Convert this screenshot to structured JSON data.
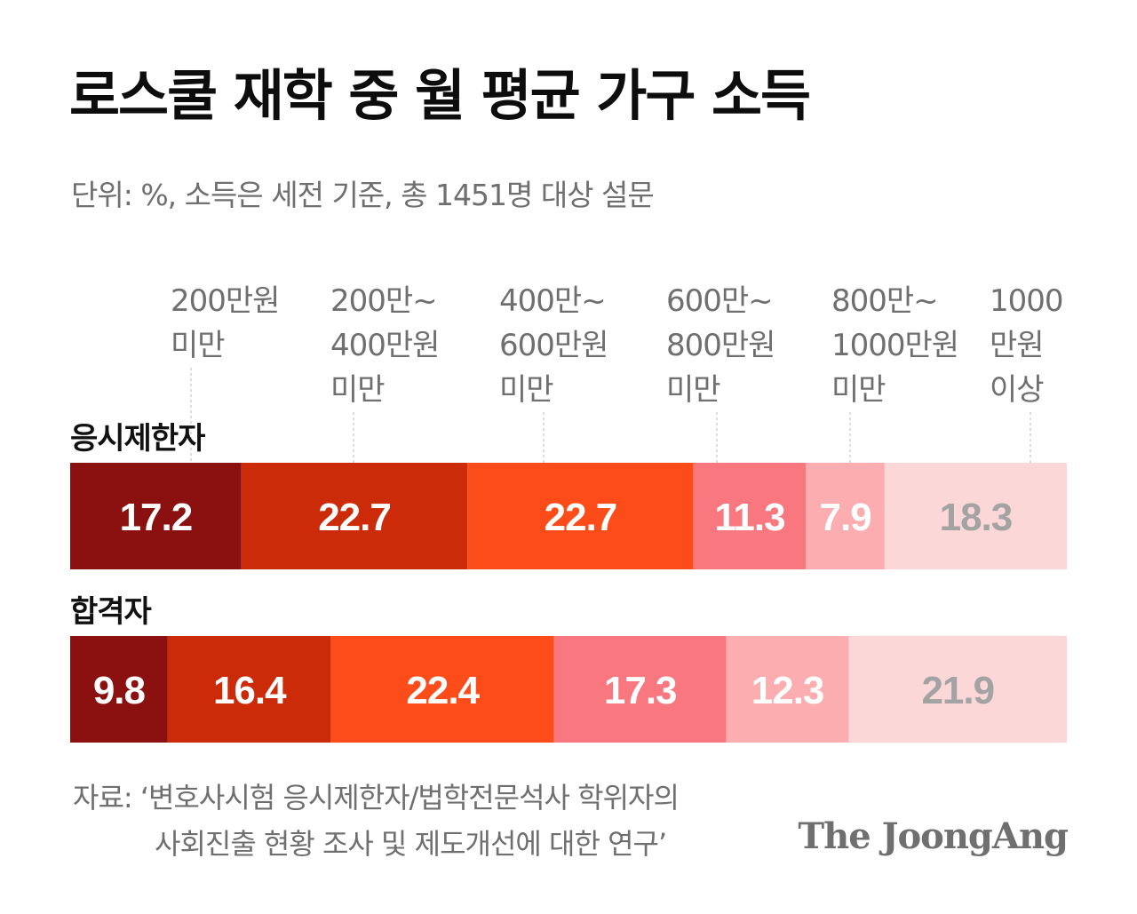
{
  "title": "로스쿨 재학 중 월 평균 가구 소득",
  "subtitle": "단위: %, 소득은 세전 기준, 총 1451명 대상 설문",
  "source": {
    "line1": "자료: ‘변호사시험 응시제한자/법학전문석사 학위자의",
    "line2": "사회진출 현황 조사 및 제도개선에 대한 연구’"
  },
  "brand": "The JoongAng",
  "colors": [
    "#8b1010",
    "#cc2b0a",
    "#fc4c19",
    "#f9787f",
    "#fcadb0",
    "#fcd7d7"
  ],
  "label_colors": [
    "#ffffff",
    "#ffffff",
    "#ffffff",
    "#ffffff",
    "#ffffff",
    "#a3a3a3"
  ],
  "chart_data": {
    "type": "bar",
    "orientation": "horizontal-stacked-100",
    "unit": "%",
    "categories": [
      [
        "200만원",
        "미만"
      ],
      [
        "200만~",
        "400만원",
        "미만"
      ],
      [
        "400만~",
        "600만원",
        "미만"
      ],
      [
        "600만~",
        "800만원",
        "미만"
      ],
      [
        "800만~",
        "1000만원",
        "미만"
      ],
      [
        "1000",
        "만원",
        "이상"
      ]
    ],
    "series": [
      {
        "name": "응시제한자",
        "values": [
          17.2,
          22.7,
          22.7,
          11.3,
          7.9,
          18.3
        ]
      },
      {
        "name": "합격자",
        "values": [
          9.8,
          16.4,
          22.4,
          17.3,
          12.3,
          21.9
        ]
      }
    ]
  }
}
